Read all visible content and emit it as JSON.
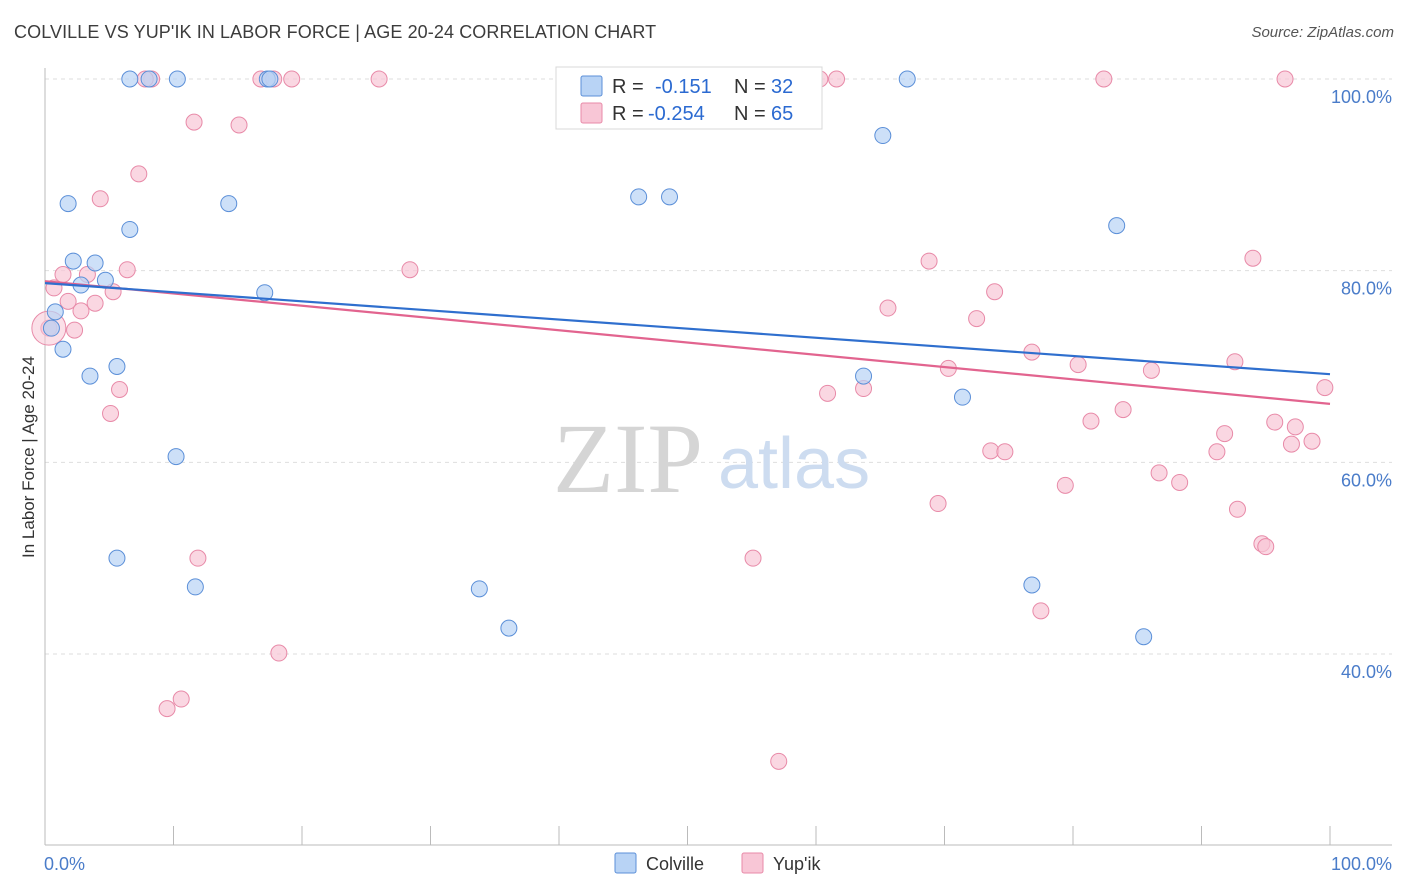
{
  "header": {
    "title": "COLVILLE VS YUP'IK IN LABOR FORCE | AGE 20-24 CORRELATION CHART",
    "source": "Source: ZipAtlas.com"
  },
  "colors": {
    "colville_fill": "#b8d3f5",
    "colville_stroke": "#5b8fd8",
    "colville_line": "#2f6fce",
    "yupik_fill": "#f8c6d6",
    "yupik_stroke": "#e88aa8",
    "yupik_line": "#e2648f",
    "grid": "#dedede",
    "tick_text": "#4a7cc9"
  },
  "stats": {
    "colville": {
      "r_label": "R =",
      "r_value": "-0.151",
      "n_label": "N =",
      "n_value": "32"
    },
    "yupik": {
      "r_label": "R =",
      "r_value": "-0.254",
      "n_label": "N =",
      "n_value": "65"
    }
  },
  "watermark": {
    "zip": "ZIP",
    "atlas": "atlas"
  },
  "chart_data": {
    "type": "scatter",
    "title": "COLVILLE VS YUP'IK IN LABOR FORCE | AGE 20-24 CORRELATION CHART",
    "xlabel": "",
    "ylabel": "In Labor Force | Age 20-24",
    "xlim": [
      0,
      100
    ],
    "ylim": [
      20,
      103
    ],
    "x_tick_labels": [
      "0.0%",
      "100.0%"
    ],
    "y_ticks": [
      40,
      60,
      80,
      100
    ],
    "y_tick_labels": [
      "40.0%",
      "60.0%",
      "80.0%",
      "100.0%"
    ],
    "grid": true,
    "legend_position": "bottom-center",
    "series": [
      {
        "name": "Colville",
        "r": -0.151,
        "n": 32,
        "trend": {
          "x": [
            0,
            100
          ],
          "y": [
            78.7,
            69.2
          ]
        },
        "points": [
          [
            0.5,
            74
          ],
          [
            0.8,
            75.7
          ],
          [
            1.4,
            71.8
          ],
          [
            1.8,
            87
          ],
          [
            2.2,
            81
          ],
          [
            2.8,
            78.5
          ],
          [
            3.5,
            69
          ],
          [
            3.9,
            80.8
          ],
          [
            4.7,
            79
          ],
          [
            5.6,
            70
          ],
          [
            5.6,
            50
          ],
          [
            6.6,
            84.3
          ],
          [
            6.6,
            100
          ],
          [
            8.1,
            100
          ],
          [
            10.3,
            100
          ],
          [
            10.2,
            60.6
          ],
          [
            11.7,
            47
          ],
          [
            14.3,
            87
          ],
          [
            17.1,
            77.7
          ],
          [
            17.3,
            100
          ],
          [
            17.5,
            100
          ],
          [
            33.8,
            46.8
          ],
          [
            36.1,
            42.7
          ],
          [
            46.2,
            87.7
          ],
          [
            48.6,
            87.7
          ],
          [
            63.7,
            69
          ],
          [
            65.2,
            94.1
          ],
          [
            67.1,
            100
          ],
          [
            71.4,
            66.8
          ],
          [
            76.8,
            47.2
          ],
          [
            83.4,
            84.7
          ],
          [
            85.5,
            41.8
          ]
        ]
      },
      {
        "name": "Yup'ik",
        "r": -0.254,
        "n": 65,
        "trend": {
          "x": [
            0,
            100
          ],
          "y": [
            78.9,
            66.1
          ]
        },
        "points": [
          [
            0.3,
            74
          ],
          [
            0.7,
            78.2
          ],
          [
            1.4,
            79.6
          ],
          [
            1.8,
            76.8
          ],
          [
            2.3,
            73.8
          ],
          [
            2.8,
            75.8
          ],
          [
            3.3,
            79.6
          ],
          [
            3.9,
            76.6
          ],
          [
            4.3,
            87.5
          ],
          [
            5.1,
            65.1
          ],
          [
            5.3,
            77.8
          ],
          [
            5.8,
            67.6
          ],
          [
            6.4,
            80.1
          ],
          [
            7.3,
            90.1
          ],
          [
            8.3,
            100
          ],
          [
            9.5,
            34.3
          ],
          [
            10.6,
            35.3
          ],
          [
            11.6,
            95.5
          ],
          [
            11.9,
            50
          ],
          [
            15.1,
            95.2
          ],
          [
            16.8,
            100
          ],
          [
            17.8,
            100
          ],
          [
            18.2,
            40.1
          ],
          [
            19.2,
            100
          ],
          [
            26.0,
            100
          ],
          [
            28.4,
            80.1
          ],
          [
            55.1,
            50
          ],
          [
            57.1,
            28.8
          ],
          [
            60.3,
            100
          ],
          [
            59.7,
            98
          ],
          [
            60.9,
            67.2
          ],
          [
            61.6,
            100
          ],
          [
            63.7,
            67.7
          ],
          [
            65.6,
            76.1
          ],
          [
            69.5,
            55.7
          ],
          [
            68.8,
            81
          ],
          [
            70.3,
            69.8
          ],
          [
            72.5,
            75
          ],
          [
            73.6,
            61.2
          ],
          [
            73.9,
            77.8
          ],
          [
            74.7,
            61.1
          ],
          [
            76.8,
            71.5
          ],
          [
            77.5,
            44.5
          ],
          [
            79.4,
            57.6
          ],
          [
            80.4,
            70.2
          ],
          [
            81.4,
            64.3
          ],
          [
            82.4,
            100
          ],
          [
            83.9,
            65.5
          ],
          [
            86.1,
            69.6
          ],
          [
            86.7,
            58.9
          ],
          [
            88.3,
            57.9
          ],
          [
            91.2,
            61.1
          ],
          [
            91.8,
            63
          ],
          [
            92.6,
            70.5
          ],
          [
            92.8,
            55.1
          ],
          [
            94.0,
            81.3
          ],
          [
            94.7,
            51.5
          ],
          [
            95.0,
            51.2
          ],
          [
            95.7,
            64.2
          ],
          [
            96.5,
            100
          ],
          [
            97.0,
            61.9
          ],
          [
            97.3,
            63.7
          ],
          [
            98.6,
            62.2
          ],
          [
            99.6,
            67.8
          ],
          [
            7.8,
            100
          ]
        ]
      }
    ]
  }
}
